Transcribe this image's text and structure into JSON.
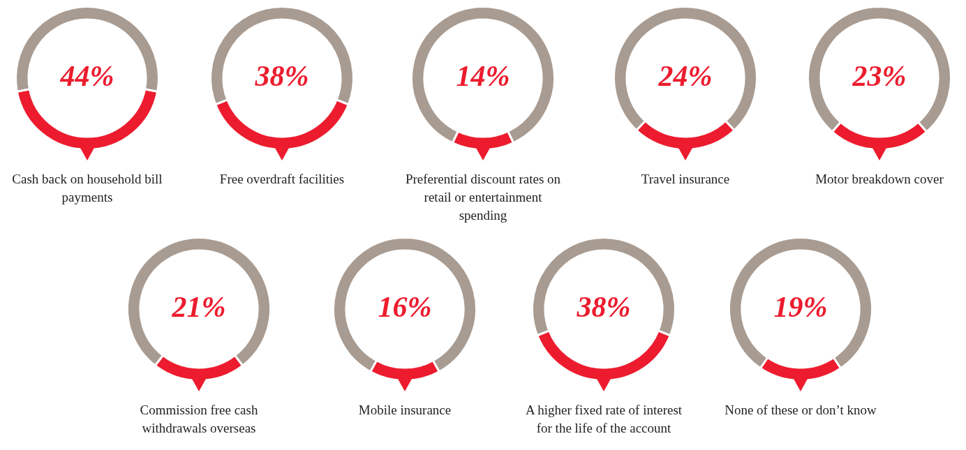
{
  "chart_data": [
    {
      "type": "donut",
      "title": "Cash back on household bill payments",
      "categories": [
        null,
        null
      ],
      "values": [
        44,
        56
      ],
      "colors": [
        "#ec1c2e",
        "#a89b91"
      ],
      "annotations": [
        "44%"
      ]
    },
    {
      "type": "donut",
      "title": "Free overdraft facilities",
      "categories": [
        null,
        null
      ],
      "values": [
        38,
        62
      ],
      "colors": [
        "#ec1c2e",
        "#a89b91"
      ],
      "annotations": [
        "38%"
      ]
    },
    {
      "type": "donut",
      "title": "Preferential discount rates on retail or entertainment spending",
      "categories": [
        null,
        null
      ],
      "values": [
        14,
        86
      ],
      "colors": [
        "#ec1c2e",
        "#a89b91"
      ],
      "annotations": [
        "14%"
      ]
    },
    {
      "type": "donut",
      "title": "Travel insurance",
      "categories": [
        null,
        null
      ],
      "values": [
        24,
        76
      ],
      "colors": [
        "#ec1c2e",
        "#a89b91"
      ],
      "annotations": [
        "24%"
      ]
    },
    {
      "type": "donut",
      "title": "Motor breakdown cover",
      "categories": [
        null,
        null
      ],
      "values": [
        23,
        77
      ],
      "colors": [
        "#ec1c2e",
        "#a89b91"
      ],
      "annotations": [
        "23%"
      ]
    },
    {
      "type": "donut",
      "title": "Commission free cash withdrawals overseas",
      "categories": [
        null,
        null
      ],
      "values": [
        21,
        79
      ],
      "colors": [
        "#ec1c2e",
        "#a89b91"
      ],
      "annotations": [
        "21%"
      ]
    },
    {
      "type": "donut",
      "title": "Mobile insurance",
      "categories": [
        null,
        null
      ],
      "values": [
        16,
        84
      ],
      "colors": [
        "#ec1c2e",
        "#a89b91"
      ],
      "annotations": [
        "16%"
      ]
    },
    {
      "type": "donut",
      "title": "A higher fixed rate of interest for the life of the account",
      "categories": [
        null,
        null
      ],
      "values": [
        38,
        62
      ],
      "colors": [
        "#ec1c2e",
        "#a89b91"
      ],
      "annotations": [
        "38%"
      ]
    },
    {
      "type": "donut",
      "title": "None of these or don’t know",
      "categories": [
        null,
        null
      ],
      "values": [
        19,
        81
      ],
      "colors": [
        "#ec1c2e",
        "#a89b91"
      ],
      "annotations": [
        "19%"
      ]
    }
  ]
}
